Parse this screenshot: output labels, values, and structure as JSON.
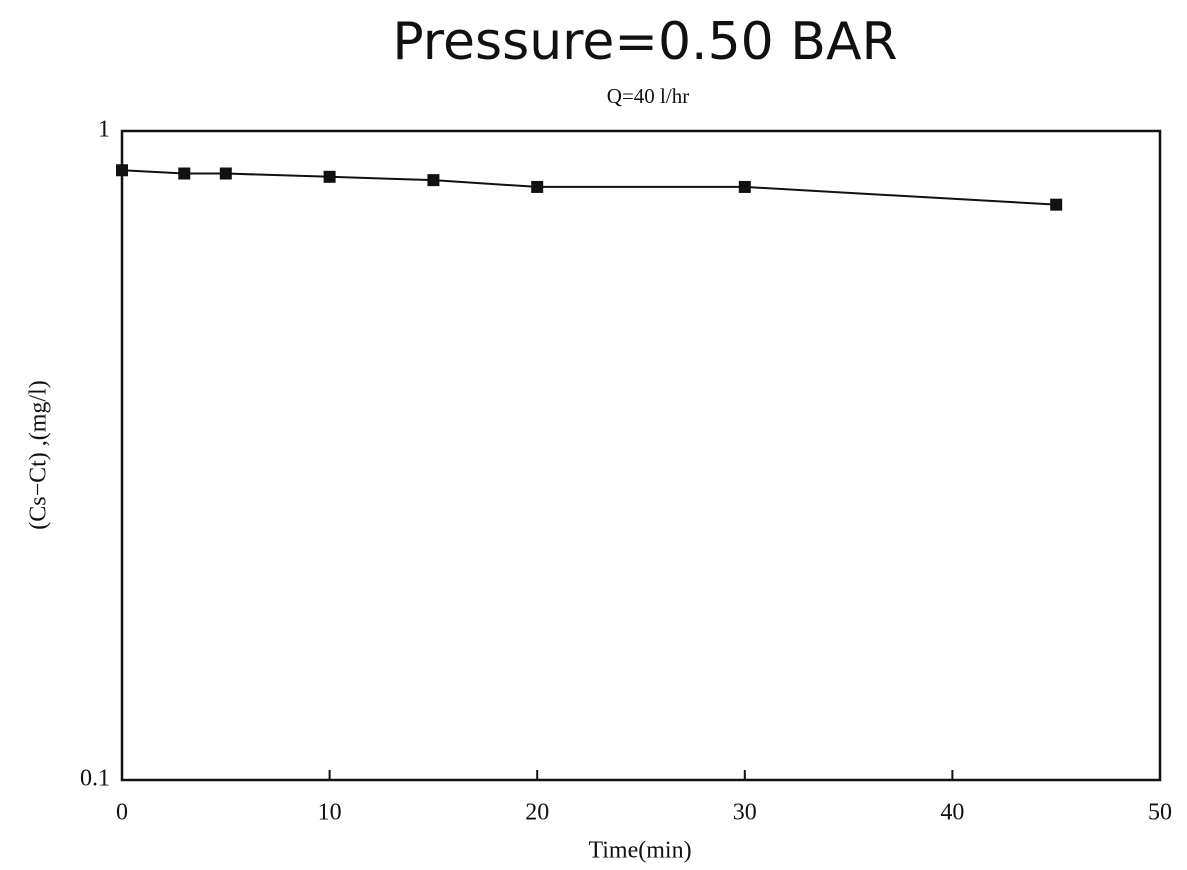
{
  "chart_data": {
    "type": "line",
    "title": "Pressure=0.50 BAR",
    "subtitle": "Q=40 l/hr",
    "x_label": "Time(min)",
    "y_label": "(Cs−Ct) ,(mg/l)",
    "x": [
      0,
      3,
      5,
      10,
      15,
      20,
      30,
      45
    ],
    "values": [
      0.87,
      0.86,
      0.86,
      0.85,
      0.84,
      0.82,
      0.82,
      0.77
    ],
    "color": "#111111",
    "xlim": [
      0,
      50
    ],
    "xticks": [
      0,
      10,
      20,
      30,
      40,
      50
    ],
    "ylim": [
      0.1,
      1
    ],
    "yticks": [
      0.1,
      1
    ],
    "yscale": "log"
  }
}
